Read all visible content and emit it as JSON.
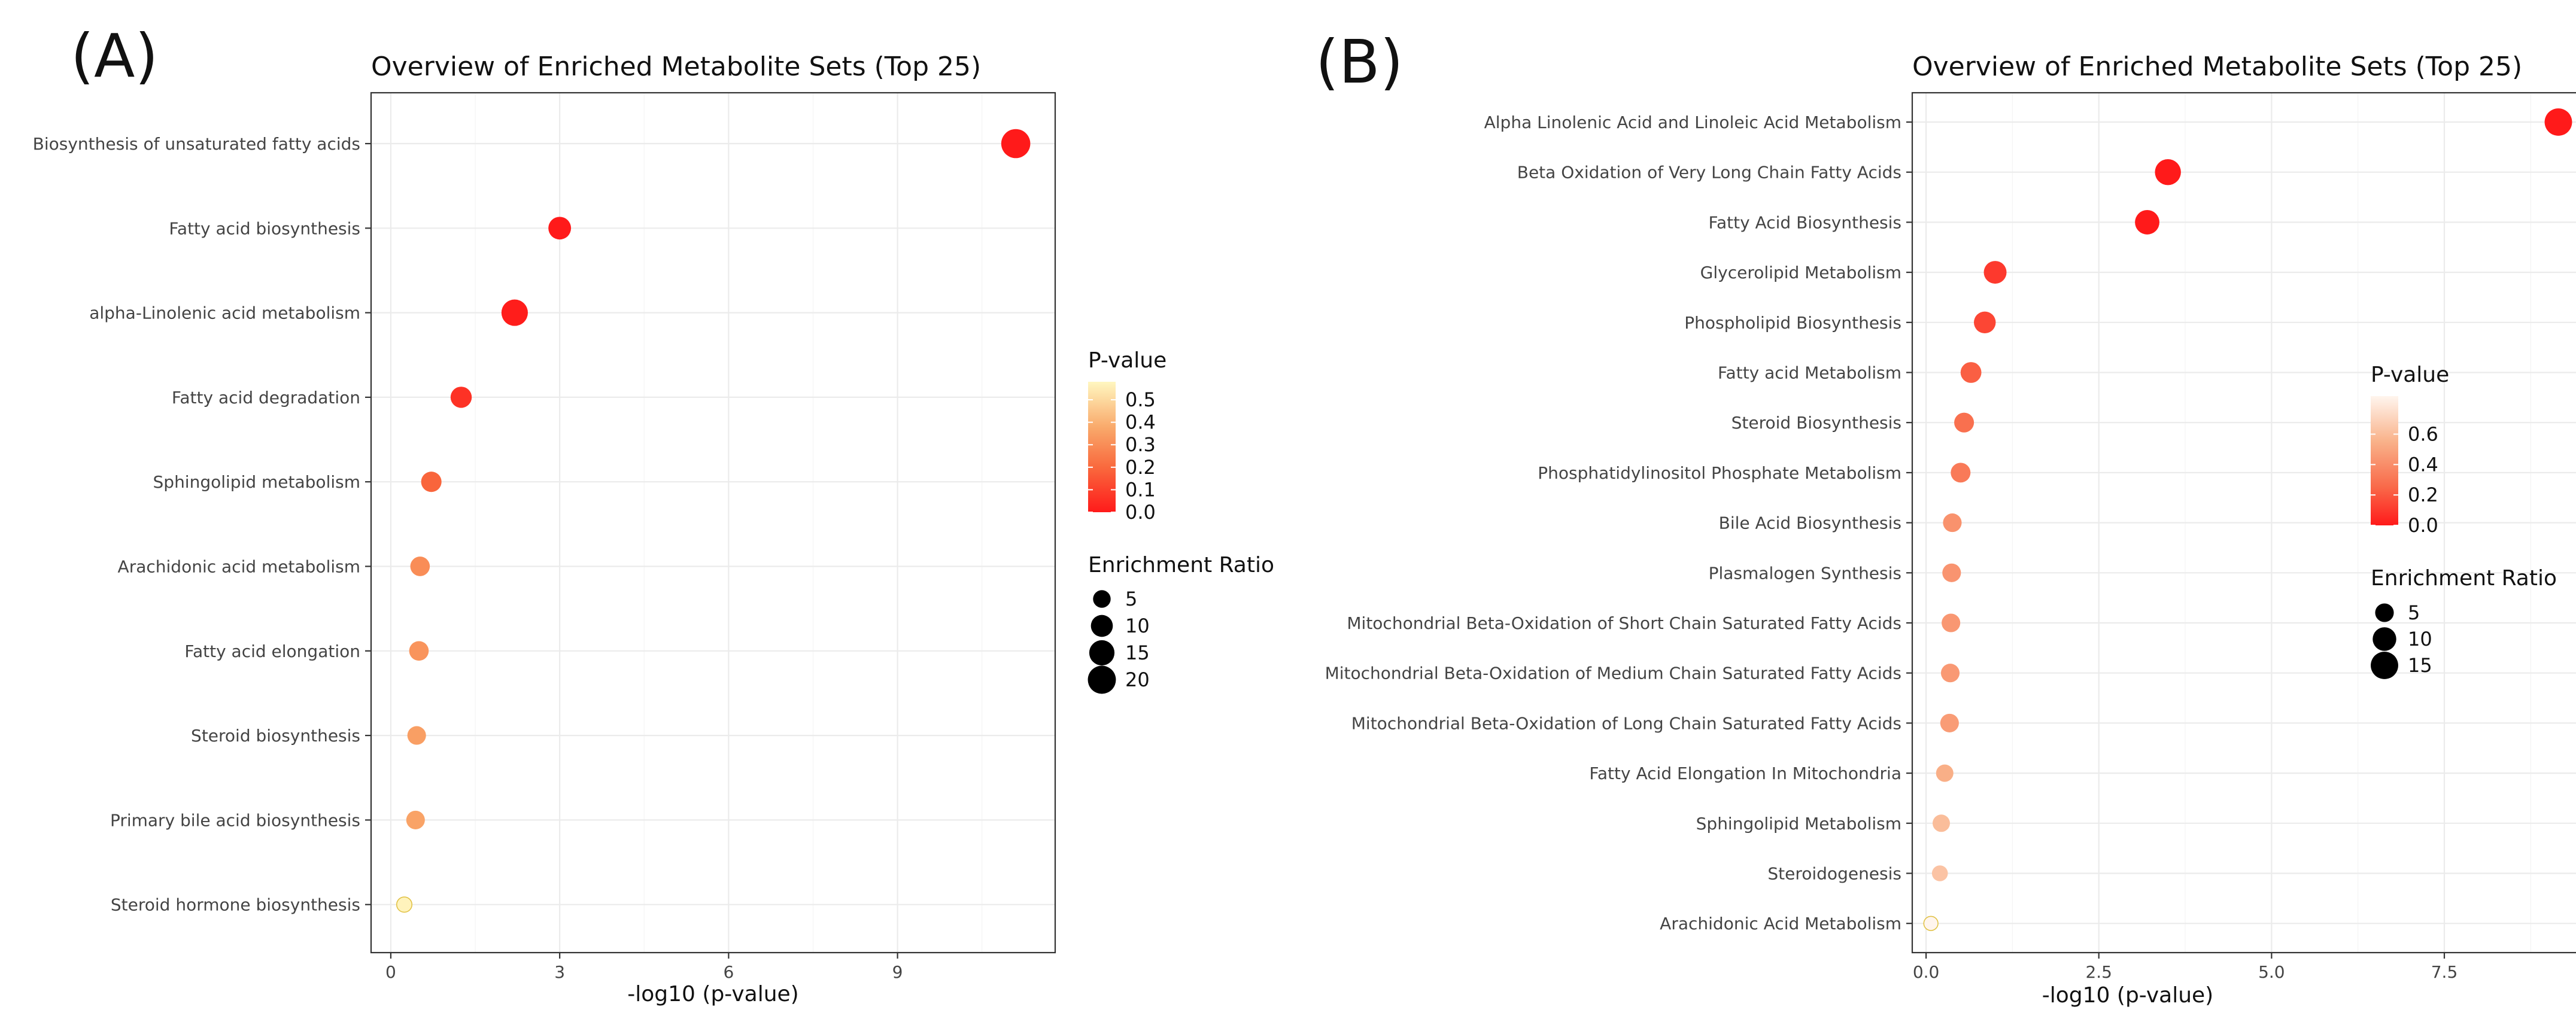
{
  "chart_data": [
    {
      "panel_label": "(A)",
      "type": "scatter",
      "title": "Overview of Enriched Metabolite Sets (Top 25)",
      "xlabel": "-log10 (p-value)",
      "ylabel": "",
      "xlim": [
        -0.35,
        11.8
      ],
      "xticks": [
        0,
        3,
        6,
        9
      ],
      "xtick_labels": [
        "0",
        "3",
        "6",
        "9"
      ],
      "categories": [
        "Biosynthesis of unsaturated fatty acids",
        "Fatty acid biosynthesis",
        "alpha-Linolenic acid metabolism",
        "Fatty acid degradation",
        "Sphingolipid metabolism",
        "Arachidonic acid metabolism",
        "Fatty acid elongation",
        "Steroid biosynthesis",
        "Primary bile acid biosynthesis",
        "Steroid hormone biosynthesis"
      ],
      "x": [
        11.1,
        3.0,
        2.2,
        1.25,
        0.72,
        0.52,
        0.5,
        0.46,
        0.44,
        0.24
      ],
      "p_value": [
        0.0,
        0.001,
        0.007,
        0.06,
        0.19,
        0.3,
        0.32,
        0.35,
        0.36,
        0.57
      ],
      "enrichment_ratio": [
        22,
        11,
        17,
        9,
        8,
        7,
        7,
        6,
        6,
        3
      ],
      "color_legend": {
        "title": "P-value",
        "ticks": [
          0.5,
          0.4,
          0.3,
          0.2,
          0.1,
          0.0
        ],
        "tick_labels": [
          "0.5",
          "0.4",
          "0.3",
          "0.2",
          "0.1",
          "0.0"
        ],
        "range": [
          0.0,
          0.58
        ]
      },
      "size_legend": {
        "title": "Enrichment Ratio",
        "values": [
          5,
          10,
          15,
          20
        ],
        "labels": [
          "5",
          "10",
          "15",
          "20"
        ]
      },
      "grid": true
    },
    {
      "panel_label": "(B)",
      "type": "scatter",
      "title": "Overview of Enriched Metabolite Sets (Top 25)",
      "xlabel": "-log10 (p-value)",
      "ylabel": "",
      "xlim": [
        -0.2,
        9.7
      ],
      "xticks": [
        0,
        2.5,
        5,
        7.5
      ],
      "xtick_labels": [
        "0.0",
        "2.5",
        "5.0",
        "7.5"
      ],
      "categories": [
        "Alpha Linolenic Acid and Linoleic Acid Metabolism",
        "Beta Oxidation of Very Long Chain Fatty Acids",
        "Fatty Acid Biosynthesis",
        "Glycerolipid Metabolism",
        "Phospholipid Biosynthesis",
        "Fatty acid Metabolism",
        "Steroid Biosynthesis",
        "Phosphatidylinositol Phosphate Metabolism",
        "Bile Acid Biosynthesis",
        "Plasmalogen Synthesis",
        "Mitochondrial Beta-Oxidation of Short Chain Saturated Fatty Acids",
        "Mitochondrial Beta-Oxidation of Medium Chain Saturated Fatty Acids",
        "Mitochondrial Beta-Oxidation of Long Chain Saturated Fatty Acids",
        "Fatty Acid Elongation In Mitochondria",
        "Sphingolipid Metabolism",
        "Steroidogenesis",
        "Arachidonic Acid Metabolism"
      ],
      "x": [
        9.15,
        3.5,
        3.2,
        1.0,
        0.85,
        0.65,
        0.55,
        0.5,
        0.38,
        0.37,
        0.36,
        0.35,
        0.34,
        0.27,
        0.22,
        0.2,
        0.07
      ],
      "p_value": [
        0.0,
        0.0,
        0.001,
        0.1,
        0.14,
        0.22,
        0.28,
        0.32,
        0.42,
        0.43,
        0.44,
        0.45,
        0.46,
        0.54,
        0.6,
        0.63,
        0.85
      ],
      "enrichment_ratio": [
        15,
        13,
        11,
        9,
        8,
        7,
        6,
        6,
        5,
        5,
        5,
        5,
        5,
        4,
        4,
        3,
        2
      ],
      "color_legend": {
        "title": "P-value",
        "ticks": [
          0.6,
          0.4,
          0.2,
          0.0
        ],
        "tick_labels": [
          "0.6",
          "0.4",
          "0.2",
          "0.0"
        ],
        "range": [
          0.0,
          0.85
        ]
      },
      "size_legend": {
        "title": "Enrichment Ratio",
        "values": [
          5,
          10,
          15
        ],
        "labels": [
          "5",
          "10",
          "15"
        ]
      },
      "grid": true
    }
  ]
}
